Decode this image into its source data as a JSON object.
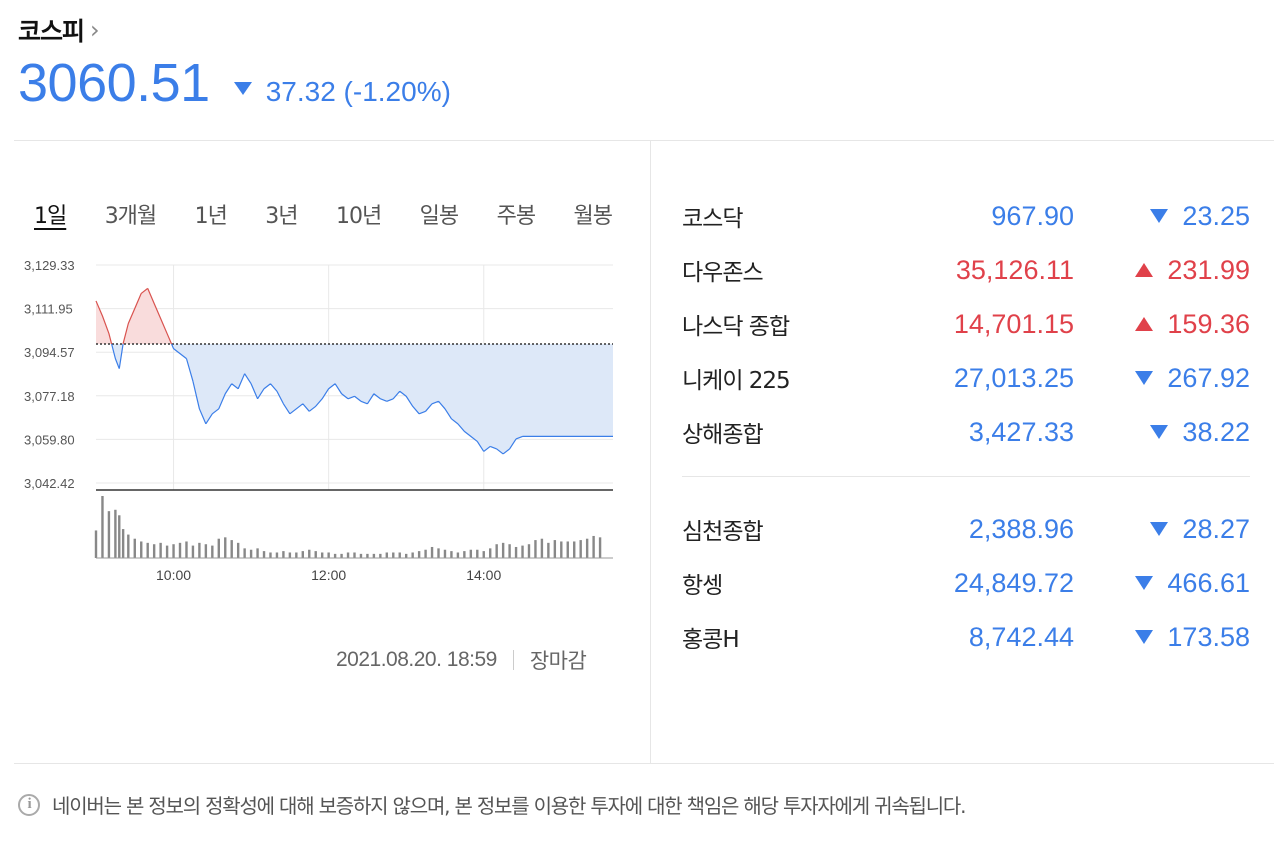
{
  "header": {
    "title": "코스피",
    "price": "3060.51",
    "change": "37.32 (-1.20%)",
    "direction": "down"
  },
  "tabs": [
    "1일",
    "3개월",
    "1년",
    "3년",
    "10년",
    "일봉",
    "주봉",
    "월봉"
  ],
  "active_tab": "1일",
  "timestamp": "2021.08.20. 18:59",
  "market_status": "장마감",
  "indices_group1": [
    {
      "name": "코스닥",
      "value": "967.90",
      "change": "23.25",
      "dir": "down"
    },
    {
      "name": "다우존스",
      "value": "35,126.11",
      "change": "231.99",
      "dir": "up"
    },
    {
      "name": "나스닥 종합",
      "value": "14,701.15",
      "change": "159.36",
      "dir": "up"
    },
    {
      "name": "니케이 225",
      "value": "27,013.25",
      "change": "267.92",
      "dir": "down"
    },
    {
      "name": "상해종합",
      "value": "3,427.33",
      "change": "38.22",
      "dir": "down"
    }
  ],
  "indices_group2": [
    {
      "name": "심천종합",
      "value": "2,388.96",
      "change": "28.27",
      "dir": "down"
    },
    {
      "name": "항셍",
      "value": "24,849.72",
      "change": "466.61",
      "dir": "down"
    },
    {
      "name": "홍콩H",
      "value": "8,742.44",
      "change": "173.58",
      "dir": "down"
    }
  ],
  "disclaimer": "네이버는 본 정보의 정확성에 대해 보증하지 않으며, 본 정보를 이용한 투자에 대한 책임은 해당 투자자에게 귀속됩니다.",
  "colors": {
    "up": "#e0414a",
    "down": "#3b7ee8",
    "up_fill": "#f9dcdc",
    "down_fill": "#dde8f8"
  },
  "chart_data": {
    "type": "line",
    "ytick_labels": [
      "3,129.33",
      "3,111.95",
      "3,094.57",
      "3,077.18",
      "3,059.80",
      "3,042.42"
    ],
    "ylim": [
      3042.42,
      3129.33
    ],
    "xtick_labels": [
      "10:00",
      "12:00",
      "14:00"
    ],
    "xtick_minutes": [
      600,
      720,
      840
    ],
    "x_range_minutes": [
      540,
      940
    ],
    "reference": 3097.83,
    "series": [
      {
        "x": [
          540,
          545,
          550,
          555,
          558,
          561,
          565,
          570,
          575,
          580,
          585,
          590,
          595,
          600,
          605,
          610,
          615,
          620,
          625,
          630,
          635,
          640,
          645,
          650,
          655,
          660,
          665,
          670,
          675,
          680,
          685,
          690,
          695,
          700,
          705,
          710,
          715,
          720,
          725,
          730,
          735,
          740,
          745,
          750,
          755,
          760,
          765,
          770,
          775,
          780,
          785,
          790,
          795,
          800,
          805,
          810,
          815,
          820,
          825,
          830,
          835,
          840,
          845,
          850,
          855,
          860,
          865,
          870,
          875,
          880,
          885,
          890,
          895,
          900,
          905,
          910,
          915,
          920,
          925,
          930
        ],
        "values": [
          3115,
          3109,
          3102,
          3092,
          3088,
          3098,
          3106,
          3112,
          3118,
          3120,
          3114,
          3108,
          3102,
          3096,
          3094,
          3092,
          3083,
          3072,
          3066,
          3070,
          3072,
          3078,
          3082,
          3080,
          3086,
          3082,
          3076,
          3080,
          3082,
          3079,
          3074,
          3070,
          3072,
          3074,
          3071,
          3073,
          3076,
          3080,
          3082,
          3078,
          3076,
          3077,
          3075,
          3074,
          3078,
          3076,
          3075,
          3076,
          3079,
          3077,
          3073,
          3070,
          3071,
          3074,
          3075,
          3072,
          3068,
          3066,
          3063,
          3061,
          3059,
          3055,
          3057,
          3056,
          3054,
          3056,
          3060,
          3061,
          3061,
          3061,
          3061,
          3061,
          3061,
          3061,
          3061,
          3061,
          3061,
          3061,
          3061,
          3061
        ]
      }
    ],
    "volume": [
      40,
      90,
      68,
      70,
      62,
      42,
      34,
      28,
      24,
      22,
      20,
      22,
      18,
      20,
      22,
      24,
      18,
      22,
      20,
      18,
      28,
      30,
      26,
      22,
      14,
      12,
      14,
      10,
      8,
      8,
      10,
      8,
      8,
      10,
      12,
      10,
      8,
      8,
      6,
      6,
      8,
      8,
      6,
      6,
      6,
      6,
      8,
      8,
      8,
      6,
      8,
      10,
      12,
      16,
      14,
      12,
      10,
      8,
      10,
      12,
      12,
      10,
      14,
      20,
      22,
      20,
      16,
      18,
      20,
      26,
      28,
      22,
      26,
      24,
      24,
      24,
      26,
      28,
      32,
      30
    ]
  }
}
